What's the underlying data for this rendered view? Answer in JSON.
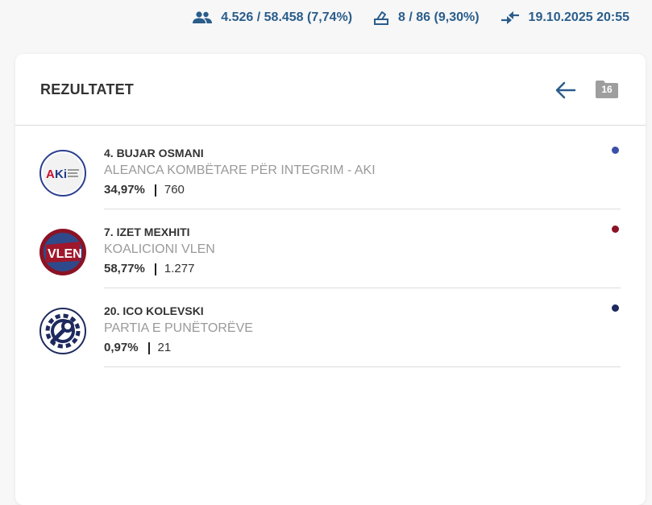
{
  "stats": {
    "voters": "4.526 / 58.458 (7,74%)",
    "stations": "8 / 86 (9,30%)",
    "updated": "19.10.2025 20:55",
    "voters_icon": "people-icon",
    "stations_icon": "ballot-box-icon",
    "updated_icon": "sync-arrows-icon"
  },
  "card": {
    "title": "REZULTATET",
    "back_icon": "arrow-left-icon",
    "folder_icon": "folder-icon",
    "folder_count": "16"
  },
  "candidates": [
    {
      "name": "4. BUJAR OSMANI",
      "party": "ALEANCA KOMBËTARE PËR INTEGRIM - AKI",
      "percent": "34,97%",
      "votes": "760",
      "color": "#3b4fa8",
      "logo_text": "AKi"
    },
    {
      "name": "7. IZET MEXHITI",
      "party": "KOALICIONI VLEN",
      "percent": "58,77%",
      "votes": "1.277",
      "color": "#8b1325",
      "logo_text": "VLEN"
    },
    {
      "name": "20. ICO KOLEVSKI",
      "party": "PARTIA E PUNËTORËVE",
      "percent": "0,97%",
      "votes": "21",
      "color": "#1e2a5e",
      "logo_text": ""
    }
  ]
}
